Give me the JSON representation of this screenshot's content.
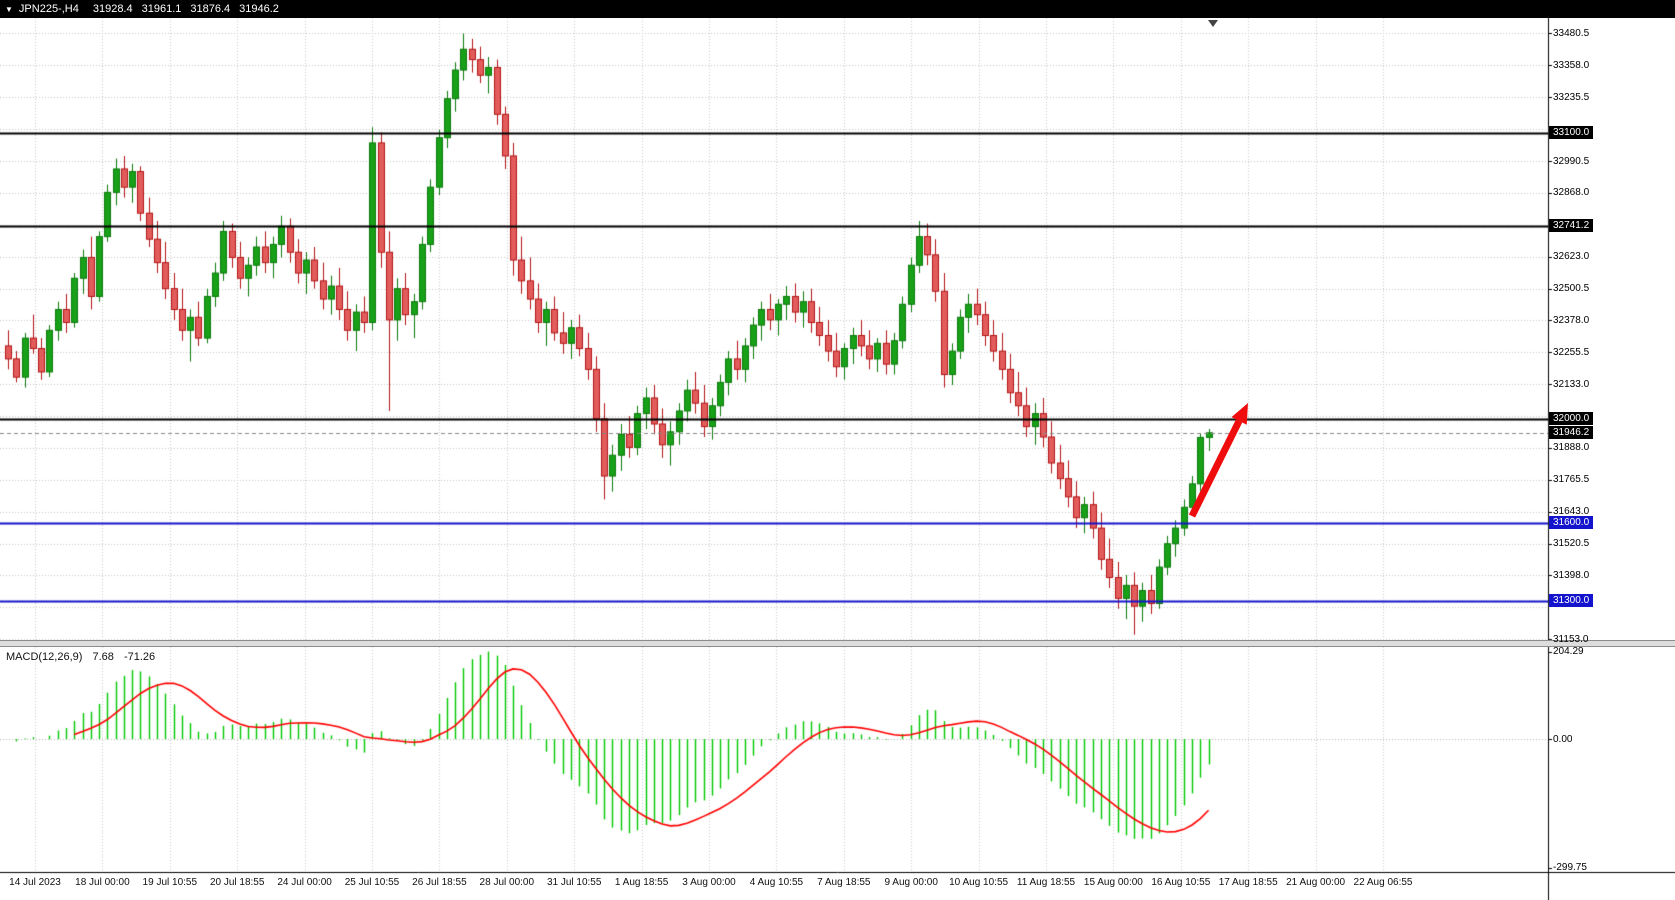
{
  "header": {
    "dropdown_icon": "▼",
    "symbol_period": "JPN225-,H4",
    "open": "31928.4",
    "high": "31961.1",
    "low": "31876.4",
    "close": "31946.2"
  },
  "colors": {
    "bull": "#18a018",
    "bull_border": "#0b7a0b",
    "bear": "#e25c5c",
    "bear_border": "#b31414",
    "grid": "#c9c9c9",
    "macd_hist": "#00c800",
    "macd_signal": "#ff0000",
    "hline_black": "#000000",
    "hline_blue": "#1414cc",
    "bid_line": "#888888",
    "arrow": "#ee0c0c",
    "axis_line": "#000000"
  },
  "arrow": {
    "tail": [
      1192,
      516
    ],
    "tip": [
      1248,
      403
    ]
  },
  "chart_data": {
    "type": "candlestick",
    "title": "JPN225- H4 with MACD(12,26,9)",
    "price_range": [
      31150,
      33540
    ],
    "price_ticks": [
      33480.5,
      33358.0,
      33235.5,
      33113.0,
      32990.5,
      32868.0,
      32745.5,
      32623.0,
      32500.5,
      32378.0,
      32255.5,
      32133.0,
      32010.5,
      31888.0,
      31765.5,
      31643.0,
      31520.5,
      31398.0,
      31275.5,
      31153.0
    ],
    "time_labels": [
      "14 Jul 2023",
      "18 Jul 00:00",
      "19 Jul 10:55",
      "20 Jul 18:55",
      "24 Jul 00:00",
      "25 Jul 10:55",
      "26 Jul 18:55",
      "28 Jul 00:00",
      "31 Jul 10:55",
      "1 Aug 18:55",
      "3 Aug 00:00",
      "4 Aug 10:55",
      "7 Aug 18:55",
      "9 Aug 00:00",
      "10 Aug 10:55",
      "11 Aug 18:55",
      "15 Aug 00:00",
      "16 Aug 10:55",
      "17 Aug 18:55",
      "21 Aug 00:00",
      "22 Aug 06:55"
    ],
    "hlines": [
      {
        "price": 33100.0,
        "label": "33100.0",
        "color": "#000000"
      },
      {
        "price": 32741.2,
        "label": "32741.2",
        "color": "#000000"
      },
      {
        "price": 32000.0,
        "label": "32000.0",
        "color": "#000000"
      },
      {
        "price": 31600.0,
        "label": "31600.0",
        "color": "#1414cc"
      },
      {
        "price": 31300.0,
        "label": "31300.0",
        "color": "#1414cc"
      }
    ],
    "bid": {
      "price": 31946.2,
      "label": "31946.2"
    },
    "macd": {
      "title": "MACD(12,26,9)",
      "main_value": "7.68",
      "signal_value": "-71.26",
      "params": [
        12,
        26,
        9
      ],
      "ticks": [
        "204.29",
        "0.00",
        "-299.75"
      ],
      "tick_values": [
        204.29,
        0,
        -299.75
      ],
      "range": [
        -310,
        215
      ]
    },
    "candles": [
      [
        32280,
        32340,
        32190,
        32230
      ],
      [
        32230,
        32260,
        32140,
        32160
      ],
      [
        32160,
        32330,
        32120,
        32310
      ],
      [
        32310,
        32400,
        32250,
        32270
      ],
      [
        32270,
        32310,
        32150,
        32180
      ],
      [
        32180,
        32360,
        32160,
        32340
      ],
      [
        32340,
        32450,
        32300,
        32420
      ],
      [
        32420,
        32480,
        32330,
        32370
      ],
      [
        32370,
        32560,
        32350,
        32540
      ],
      [
        32540,
        32650,
        32480,
        32620
      ],
      [
        32620,
        32700,
        32420,
        32470
      ],
      [
        32470,
        32720,
        32450,
        32700
      ],
      [
        32700,
        32900,
        32680,
        32870
      ],
      [
        32870,
        33000,
        32820,
        32960
      ],
      [
        32960,
        33010,
        32850,
        32890
      ],
      [
        32890,
        32980,
        32830,
        32950
      ],
      [
        32950,
        32970,
        32760,
        32790
      ],
      [
        32790,
        32850,
        32660,
        32690
      ],
      [
        32690,
        32760,
        32560,
        32600
      ],
      [
        32600,
        32680,
        32460,
        32500
      ],
      [
        32500,
        32560,
        32380,
        32420
      ],
      [
        32420,
        32500,
        32300,
        32340
      ],
      [
        32340,
        32420,
        32220,
        32390
      ],
      [
        32390,
        32450,
        32280,
        32310
      ],
      [
        32310,
        32500,
        32290,
        32470
      ],
      [
        32470,
        32600,
        32430,
        32560
      ],
      [
        32560,
        32760,
        32530,
        32720
      ],
      [
        32720,
        32750,
        32580,
        32620
      ],
      [
        32620,
        32680,
        32500,
        32540
      ],
      [
        32540,
        32620,
        32470,
        32590
      ],
      [
        32590,
        32700,
        32550,
        32660
      ],
      [
        32660,
        32720,
        32560,
        32600
      ],
      [
        32600,
        32700,
        32540,
        32670
      ],
      [
        32670,
        32780,
        32620,
        32740
      ],
      [
        32740,
        32770,
        32600,
        32640
      ],
      [
        32640,
        32690,
        32520,
        32560
      ],
      [
        32560,
        32640,
        32480,
        32610
      ],
      [
        32610,
        32660,
        32500,
        32530
      ],
      [
        32530,
        32600,
        32420,
        32460
      ],
      [
        32460,
        32550,
        32400,
        32510
      ],
      [
        32510,
        32580,
        32380,
        32420
      ],
      [
        32420,
        32490,
        32300,
        32340
      ],
      [
        32340,
        32440,
        32260,
        32410
      ],
      [
        32410,
        32470,
        32330,
        32370
      ],
      [
        32370,
        33120,
        32340,
        33060
      ],
      [
        33060,
        33100,
        32580,
        32640
      ],
      [
        32640,
        32720,
        32030,
        32380
      ],
      [
        32380,
        32540,
        32300,
        32500
      ],
      [
        32500,
        32560,
        32360,
        32400
      ],
      [
        32400,
        32480,
        32310,
        32450
      ],
      [
        32450,
        32700,
        32420,
        32670
      ],
      [
        32670,
        32920,
        32640,
        32890
      ],
      [
        32890,
        33110,
        32860,
        33080
      ],
      [
        33080,
        33260,
        33040,
        33230
      ],
      [
        33230,
        33370,
        33180,
        33340
      ],
      [
        33340,
        33480,
        33300,
        33420
      ],
      [
        33420,
        33460,
        33330,
        33380
      ],
      [
        33380,
        33430,
        33290,
        33320
      ],
      [
        33320,
        33390,
        33250,
        33350
      ],
      [
        33350,
        33380,
        33130,
        33170
      ],
      [
        33170,
        33200,
        32960,
        33010
      ],
      [
        33010,
        33060,
        32550,
        32610
      ],
      [
        32610,
        32700,
        32480,
        32530
      ],
      [
        32530,
        32620,
        32420,
        32460
      ],
      [
        32460,
        32520,
        32330,
        32370
      ],
      [
        32370,
        32450,
        32280,
        32420
      ],
      [
        32420,
        32470,
        32300,
        32330
      ],
      [
        32330,
        32410,
        32250,
        32290
      ],
      [
        32290,
        32380,
        32230,
        32350
      ],
      [
        32350,
        32400,
        32240,
        32270
      ],
      [
        32270,
        32330,
        32150,
        32190
      ],
      [
        32190,
        32240,
        31950,
        32000
      ],
      [
        32000,
        32060,
        31690,
        31780
      ],
      [
        31780,
        31900,
        31720,
        31860
      ],
      [
        31860,
        31980,
        31800,
        31940
      ],
      [
        31940,
        32010,
        31850,
        31890
      ],
      [
        31890,
        32050,
        31860,
        32020
      ],
      [
        32020,
        32120,
        31960,
        32080
      ],
      [
        32080,
        32130,
        31940,
        31980
      ],
      [
        31980,
        32040,
        31850,
        31900
      ],
      [
        31900,
        31990,
        31820,
        31950
      ],
      [
        31950,
        32060,
        31900,
        32030
      ],
      [
        32030,
        32150,
        31990,
        32110
      ],
      [
        32110,
        32180,
        32020,
        32060
      ],
      [
        32060,
        32130,
        31930,
        31970
      ],
      [
        31970,
        32080,
        31920,
        32050
      ],
      [
        32050,
        32170,
        32010,
        32140
      ],
      [
        32140,
        32260,
        32090,
        32230
      ],
      [
        32230,
        32300,
        32150,
        32190
      ],
      [
        32190,
        32310,
        32140,
        32280
      ],
      [
        32280,
        32390,
        32230,
        32360
      ],
      [
        32360,
        32450,
        32300,
        32420
      ],
      [
        32420,
        32480,
        32340,
        32380
      ],
      [
        32380,
        32460,
        32320,
        32440
      ],
      [
        32440,
        32510,
        32380,
        32470
      ],
      [
        32470,
        32520,
        32370,
        32410
      ],
      [
        32410,
        32490,
        32350,
        32450
      ],
      [
        32450,
        32500,
        32330,
        32370
      ],
      [
        32370,
        32430,
        32280,
        32320
      ],
      [
        32320,
        32380,
        32220,
        32260
      ],
      [
        32260,
        32330,
        32160,
        32200
      ],
      [
        32200,
        32290,
        32150,
        32270
      ],
      [
        32270,
        32350,
        32210,
        32320
      ],
      [
        32320,
        32380,
        32240,
        32280
      ],
      [
        32280,
        32340,
        32190,
        32230
      ],
      [
        32230,
        32310,
        32180,
        32290
      ],
      [
        32290,
        32340,
        32170,
        32210
      ],
      [
        32210,
        32330,
        32170,
        32300
      ],
      [
        32300,
        32470,
        32270,
        32440
      ],
      [
        32440,
        32620,
        32410,
        32590
      ],
      [
        32590,
        32760,
        32560,
        32700
      ],
      [
        32700,
        32750,
        32590,
        32630
      ],
      [
        32630,
        32690,
        32450,
        32490
      ],
      [
        32490,
        32560,
        32120,
        32170
      ],
      [
        32170,
        32290,
        32130,
        32260
      ],
      [
        32260,
        32420,
        32230,
        32390
      ],
      [
        32390,
        32480,
        32330,
        32440
      ],
      [
        32440,
        32500,
        32360,
        32400
      ],
      [
        32400,
        32450,
        32280,
        32320
      ],
      [
        32320,
        32380,
        32220,
        32260
      ],
      [
        32260,
        32330,
        32150,
        32190
      ],
      [
        32190,
        32250,
        32060,
        32100
      ],
      [
        32100,
        32180,
        32010,
        32050
      ],
      [
        32050,
        32120,
        31930,
        31970
      ],
      [
        31970,
        32060,
        31900,
        32020
      ],
      [
        32020,
        32080,
        31890,
        31930
      ],
      [
        31930,
        31990,
        31790,
        31830
      ],
      [
        31830,
        31900,
        31730,
        31770
      ],
      [
        31770,
        31840,
        31660,
        31700
      ],
      [
        31700,
        31760,
        31580,
        31620
      ],
      [
        31620,
        31700,
        31560,
        31670
      ],
      [
        31670,
        31720,
        31540,
        31580
      ],
      [
        31580,
        31640,
        31420,
        31460
      ],
      [
        31460,
        31540,
        31350,
        31390
      ],
      [
        31390,
        31450,
        31270,
        31310
      ],
      [
        31310,
        31400,
        31230,
        31360
      ],
      [
        31360,
        31410,
        31170,
        31280
      ],
      [
        31280,
        31370,
        31220,
        31340
      ],
      [
        31340,
        31400,
        31250,
        31290
      ],
      [
        31290,
        31460,
        31270,
        31430
      ],
      [
        31430,
        31550,
        31400,
        31520
      ],
      [
        31520,
        31610,
        31470,
        31580
      ],
      [
        31580,
        31690,
        31550,
        31660
      ],
      [
        31660,
        31780,
        31630,
        31750
      ],
      [
        31750,
        31945,
        31720,
        31928.4
      ],
      [
        31928.4,
        31961.1,
        31876.4,
        31946.2
      ]
    ]
  }
}
